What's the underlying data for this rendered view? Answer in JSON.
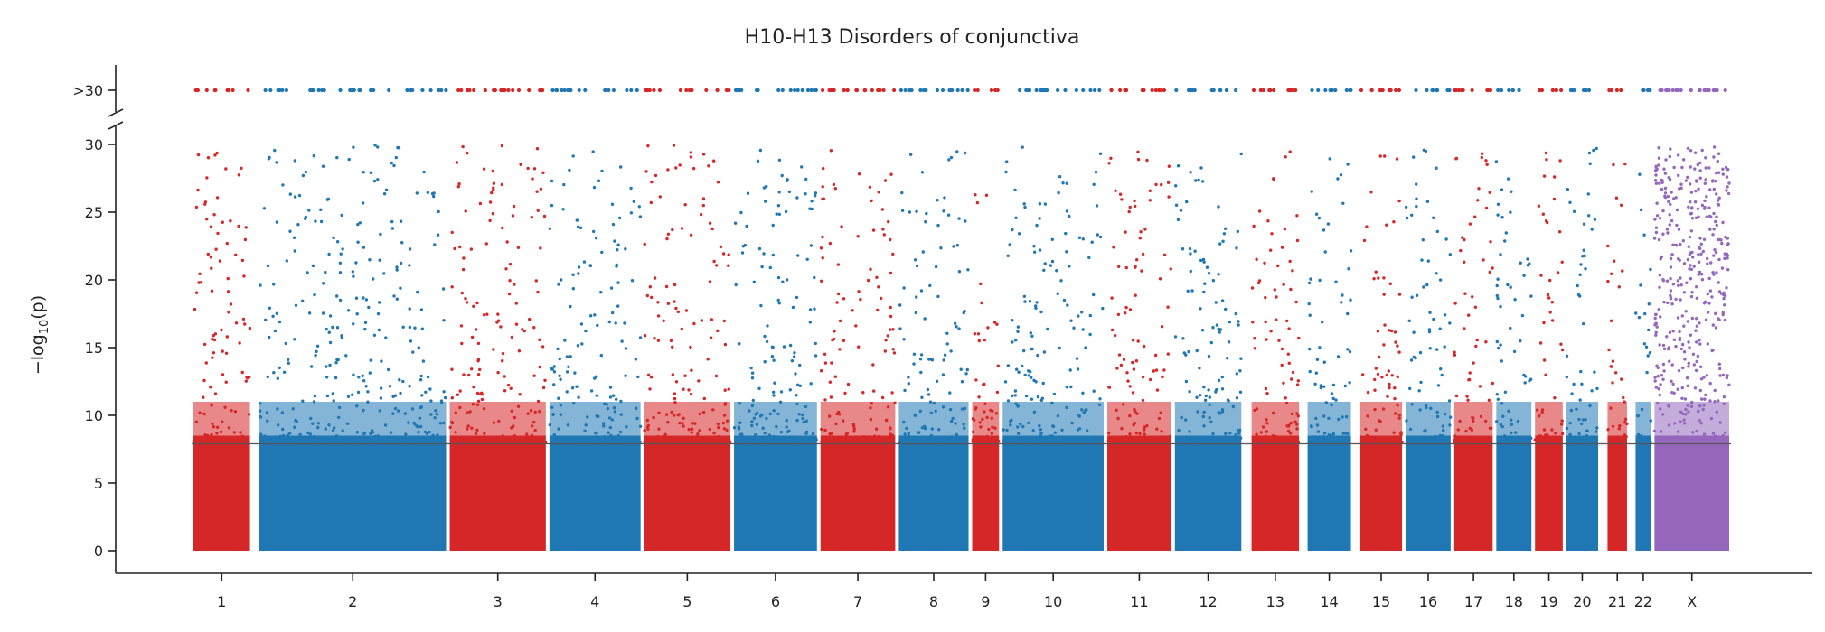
{
  "chart_data": {
    "type": "scatter",
    "title": "H10-H13 Disorders of conjunctiva",
    "ylabel": "−log",
    "ylabel_sub": "10",
    "ylabel_suffix": "(p)",
    "xlabel": "",
    "ylim": [
      0,
      30
    ],
    "yticks": [
      0,
      5,
      10,
      15,
      20,
      25,
      30
    ],
    "capped_label": ">30",
    "significance_threshold": 7.9,
    "grid": false,
    "legend": "none",
    "colors": {
      "odd": "#d62728",
      "even": "#1f77b4",
      "x": "#9467bd",
      "threshold": "#555555"
    },
    "chromosomes": [
      {
        "name": "1",
        "rel_start": 0.0,
        "rel_end": 0.0365,
        "color": "odd"
      },
      {
        "name": "2",
        "rel_start": 0.04,
        "rel_end": 0.1555,
        "color": "even"
      },
      {
        "name": "3",
        "rel_start": 0.1555,
        "rel_end": 0.216,
        "color": "odd"
      },
      {
        "name": "4",
        "rel_start": 0.216,
        "rel_end": 0.2735,
        "color": "even"
      },
      {
        "name": "5",
        "rel_start": 0.2735,
        "rel_end": 0.328,
        "color": "odd"
      },
      {
        "name": "6",
        "rel_start": 0.328,
        "rel_end": 0.3805,
        "color": "even"
      },
      {
        "name": "7",
        "rel_start": 0.3805,
        "rel_end": 0.428,
        "color": "odd"
      },
      {
        "name": "8",
        "rel_start": 0.428,
        "rel_end": 0.4725,
        "color": "even"
      },
      {
        "name": "9",
        "rel_start": 0.4725,
        "rel_end": 0.491,
        "color": "odd"
      },
      {
        "name": "10",
        "rel_start": 0.491,
        "rel_end": 0.5545,
        "color": "even"
      },
      {
        "name": "11",
        "rel_start": 0.5545,
        "rel_end": 0.5955,
        "color": "odd"
      },
      {
        "name": "12",
        "rel_start": 0.5955,
        "rel_end": 0.638,
        "color": "even"
      },
      {
        "name": "13",
        "rel_start": 0.642,
        "rel_end": 0.673,
        "color": "odd"
      },
      {
        "name": "14",
        "rel_start": 0.676,
        "rel_end": 0.7045,
        "color": "even"
      },
      {
        "name": "15",
        "rel_start": 0.708,
        "rel_end": 0.7355,
        "color": "odd"
      },
      {
        "name": "16",
        "rel_start": 0.7355,
        "rel_end": 0.765,
        "color": "even"
      },
      {
        "name": "17",
        "rel_start": 0.765,
        "rel_end": 0.7905,
        "color": "odd"
      },
      {
        "name": "18",
        "rel_start": 0.7905,
        "rel_end": 0.814,
        "color": "even"
      },
      {
        "name": "19",
        "rel_start": 0.814,
        "rel_end": 0.833,
        "color": "odd"
      },
      {
        "name": "20",
        "rel_start": 0.833,
        "rel_end": 0.8545,
        "color": "even"
      },
      {
        "name": "21",
        "rel_start": 0.858,
        "rel_end": 0.872,
        "color": "odd"
      },
      {
        "name": "22",
        "rel_start": 0.875,
        "rel_end": 0.8865,
        "color": "even"
      },
      {
        "name": "X",
        "rel_start": 0.8865,
        "rel_end": 0.934,
        "color": "x"
      }
    ]
  }
}
